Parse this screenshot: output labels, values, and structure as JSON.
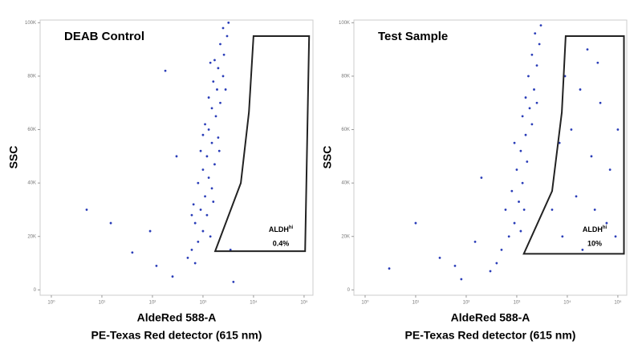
{
  "chart_data": [
    {
      "type": "scatter",
      "title": "DEAB Control",
      "ylabel": "SSC",
      "xlabel": "AldeRed 588-A",
      "xlabel_sub": "PE-Texas Red detector (615 nm)",
      "xscale": "log",
      "color": "#2a3db8",
      "gate_color": "#222222",
      "xlim": [
        0.6,
        150000
      ],
      "ylim": [
        -2000,
        101000
      ],
      "xticks": [
        {
          "value": 1,
          "label": "10⁰"
        },
        {
          "value": 10,
          "label": "10¹"
        },
        {
          "value": 100,
          "label": "10²"
        },
        {
          "value": 1000,
          "label": "10³"
        },
        {
          "value": 10000,
          "label": "10⁴"
        },
        {
          "value": 100000,
          "label": "10⁵"
        }
      ],
      "yticks": [
        0,
        {
          "value": 20000,
          "label": "20K"
        },
        {
          "value": 40000,
          "label": "40K"
        },
        {
          "value": 60000,
          "label": "60K"
        },
        {
          "value": 80000,
          "label": "80K"
        },
        {
          "value": 100000,
          "label": "100K"
        }
      ],
      "x": [
        600,
        800,
        1000,
        700,
        1200,
        900,
        650,
        1100,
        1500,
        800,
        1300,
        1000,
        1700,
        1200,
        900,
        1500,
        2000,
        1300,
        1100,
        1800,
        1500,
        2200,
        1300,
        1900,
        1600,
        2500,
        2000,
        1700,
        2600,
        2200,
        3000,
        2500,
        700,
        500,
        1400,
        1600,
        600,
        2100,
        1000,
        2800,
        1400,
        3200,
        40,
        120,
        250,
        15,
        5,
        90,
        300,
        180,
        3500,
        4000
      ],
      "y": [
        15000,
        18000,
        22000,
        25000,
        28000,
        30000,
        32000,
        35000,
        38000,
        40000,
        42000,
        45000,
        47000,
        50000,
        52000,
        55000,
        57000,
        60000,
        62000,
        65000,
        68000,
        70000,
        72000,
        75000,
        78000,
        80000,
        83000,
        86000,
        88000,
        92000,
        95000,
        98000,
        10000,
        12000,
        20000,
        33000,
        28000,
        52000,
        58000,
        75000,
        85000,
        100000,
        14000,
        9000,
        5000,
        25000,
        30000,
        22000,
        50000,
        82000,
        15000,
        3000
      ],
      "gate": {
        "x": [
          10000,
          126000,
          105000,
          1740,
          5600,
          8100
        ],
        "y": [
          95000,
          95000,
          14500,
          14500,
          40000,
          66500
        ]
      },
      "gate_label": "ALDH",
      "gate_label_sup": "hi",
      "gate_percent": "0.4%"
    },
    {
      "type": "scatter",
      "title": "Test Sample",
      "ylabel": "SSC",
      "xlabel": "AldeRed 588-A",
      "xlabel_sub": "PE-Texas Red detector (615 nm)",
      "xscale": "log",
      "color": "#2a3db8",
      "gate_color": "#222222",
      "xlim": [
        0.6,
        150000
      ],
      "ylim": [
        -2000,
        101000
      ],
      "xticks": [
        {
          "value": 1,
          "label": "10⁰"
        },
        {
          "value": 10,
          "label": "10¹"
        },
        {
          "value": 100,
          "label": "10²"
        },
        {
          "value": 1000,
          "label": "10³"
        },
        {
          "value": 10000,
          "label": "10⁴"
        },
        {
          "value": 100000,
          "label": "10⁵"
        }
      ],
      "yticks": [
        0,
        {
          "value": 20000,
          "label": "20K"
        },
        {
          "value": 40000,
          "label": "40K"
        },
        {
          "value": 60000,
          "label": "60K"
        },
        {
          "value": 80000,
          "label": "80K"
        },
        {
          "value": 100000,
          "label": "100K"
        }
      ],
      "x": [
        500,
        700,
        900,
        600,
        1100,
        800,
        1300,
        1000,
        1600,
        1200,
        900,
        1500,
        2000,
        1300,
        1800,
        1500,
        2200,
        1700,
        2500,
        2000,
        2800,
        2300,
        3000,
        400,
        1200,
        1400,
        2500,
        8000,
        15000,
        30000,
        60000,
        12000,
        45000,
        9000,
        25000,
        70000,
        20000,
        5000,
        100000,
        40000,
        7000,
        18000,
        90000,
        35000,
        80,
        30,
        150,
        10,
        300,
        60,
        200,
        3
      ],
      "y": [
        15000,
        20000,
        25000,
        30000,
        33000,
        37000,
        40000,
        45000,
        48000,
        52000,
        55000,
        58000,
        62000,
        65000,
        68000,
        72000,
        75000,
        80000,
        84000,
        88000,
        92000,
        96000,
        99000,
        10000,
        22000,
        30000,
        70000,
        20000,
        35000,
        50000,
        25000,
        60000,
        70000,
        80000,
        90000,
        45000,
        15000,
        30000,
        60000,
        85000,
        55000,
        75000,
        20000,
        30000,
        4000,
        12000,
        18000,
        25000,
        7000,
        9000,
        42000,
        8000
      ],
      "gate": {
        "x": [
          9300,
          132000,
          132000,
          1380,
          5000,
          7800
        ],
        "y": [
          95000,
          95000,
          13500,
          13500,
          37000,
          66500
        ]
      },
      "gate_label": "ALDH",
      "gate_label_sup": "hi",
      "gate_percent": "10%"
    }
  ]
}
